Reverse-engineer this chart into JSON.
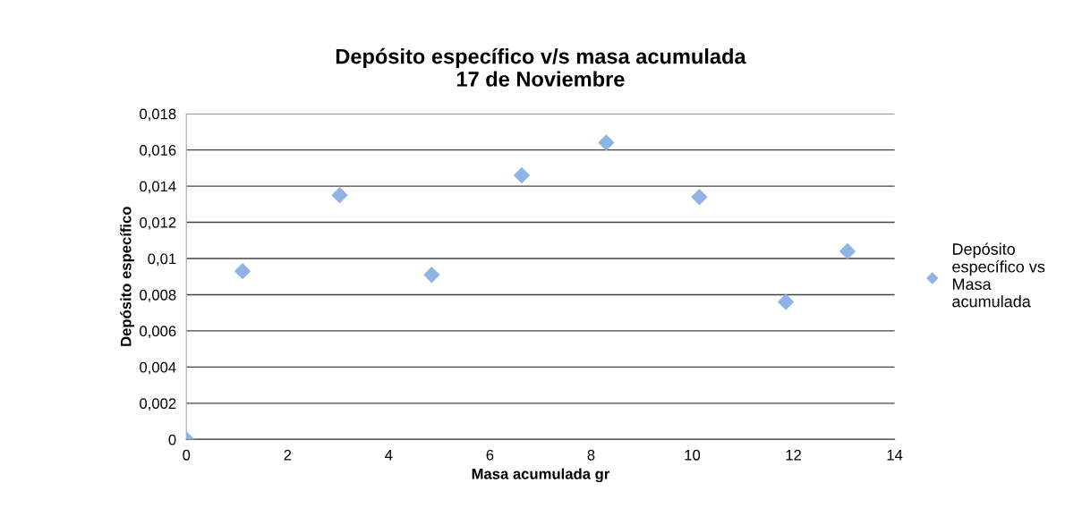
{
  "chart_data": {
    "type": "scatter",
    "title": "Depósito específico v/s masa acumulada\n17 de Noviembre",
    "xlabel": "Masa acumulada gr",
    "ylabel": "Depósito específico",
    "series": [
      {
        "name": "Depósito\nespecífico vs\nMasa\nacumulada",
        "color": "#8fb4e3",
        "x": [
          0,
          1.11,
          3.03,
          4.85,
          6.63,
          8.3,
          10.14,
          11.85,
          13.07
        ],
        "values": [
          0,
          0.0093,
          0.0135,
          0.0091,
          0.0146,
          0.0164,
          0.0134,
          0.0076,
          0.0104
        ]
      }
    ],
    "xlim": [
      0,
      14
    ],
    "xticks": [
      0,
      2,
      4,
      6,
      8,
      10,
      12,
      14
    ],
    "ylim": [
      0,
      0.018
    ],
    "yticks": [
      {
        "value": 0,
        "label": "0"
      },
      {
        "value": 0.002,
        "label": "0,002"
      },
      {
        "value": 0.004,
        "label": "0,004"
      },
      {
        "value": 0.006,
        "label": "0,006"
      },
      {
        "value": 0.008,
        "label": "0,008"
      },
      {
        "value": 0.01,
        "label": "0,01"
      },
      {
        "value": 0.012,
        "label": "0,012"
      },
      {
        "value": 0.014,
        "label": "0,014"
      },
      {
        "value": 0.016,
        "label": "0,016"
      },
      {
        "value": 0.018,
        "label": "0,018"
      }
    ],
    "grid": "y",
    "legend": "right",
    "marker": "diamond"
  }
}
